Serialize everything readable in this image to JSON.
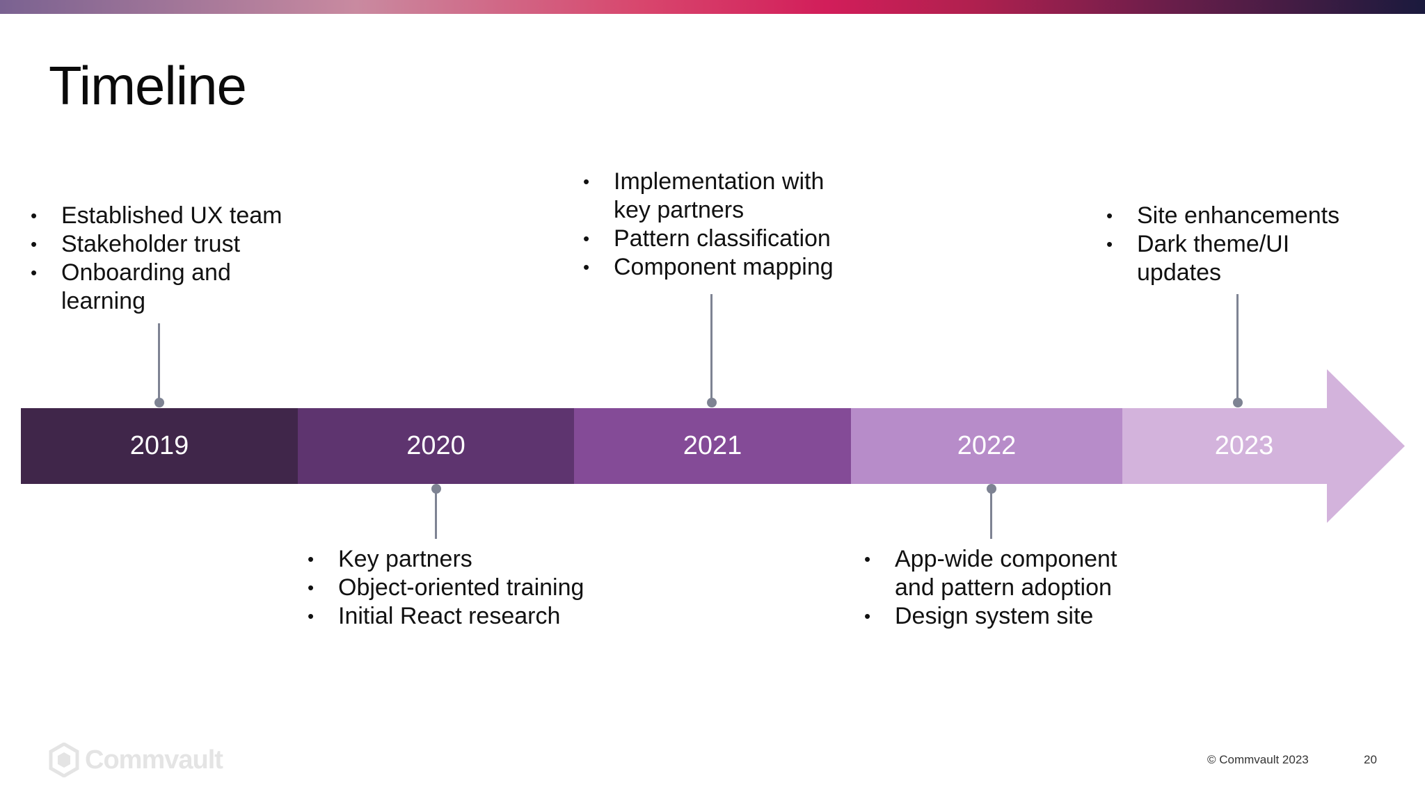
{
  "slide": {
    "title": "Timeline",
    "copyright": "© Commvault 2023",
    "page_number": "20",
    "logo_text": "Commvault"
  },
  "colors": {
    "band_2019": "#40264a",
    "band_2020": "#5e346f",
    "band_2021": "#844b97",
    "band_2022": "#b78cc9",
    "band_2023": "#d3b3dc",
    "connector": "#7e8393",
    "top_gradient": [
      "#7a6291",
      "#d21e5a",
      "#1a1a3d"
    ]
  },
  "timeline": {
    "years": [
      "2019",
      "2020",
      "2021",
      "2022",
      "2023"
    ],
    "milestones": {
      "2019": [
        "Established UX team",
        "Stakeholder trust",
        "Onboarding and learning"
      ],
      "2020": [
        "Key partners",
        "Object-oriented training",
        "Initial React research"
      ],
      "2021": [
        "Implementation with key partners",
        "Pattern classification",
        "Component mapping"
      ],
      "2022": [
        "App-wide component and pattern adoption",
        "Design system site"
      ],
      "2023": [
        "Site enhancements",
        "Dark theme/UI updates"
      ]
    }
  },
  "icons": [
    "commvault-logo-icon"
  ]
}
